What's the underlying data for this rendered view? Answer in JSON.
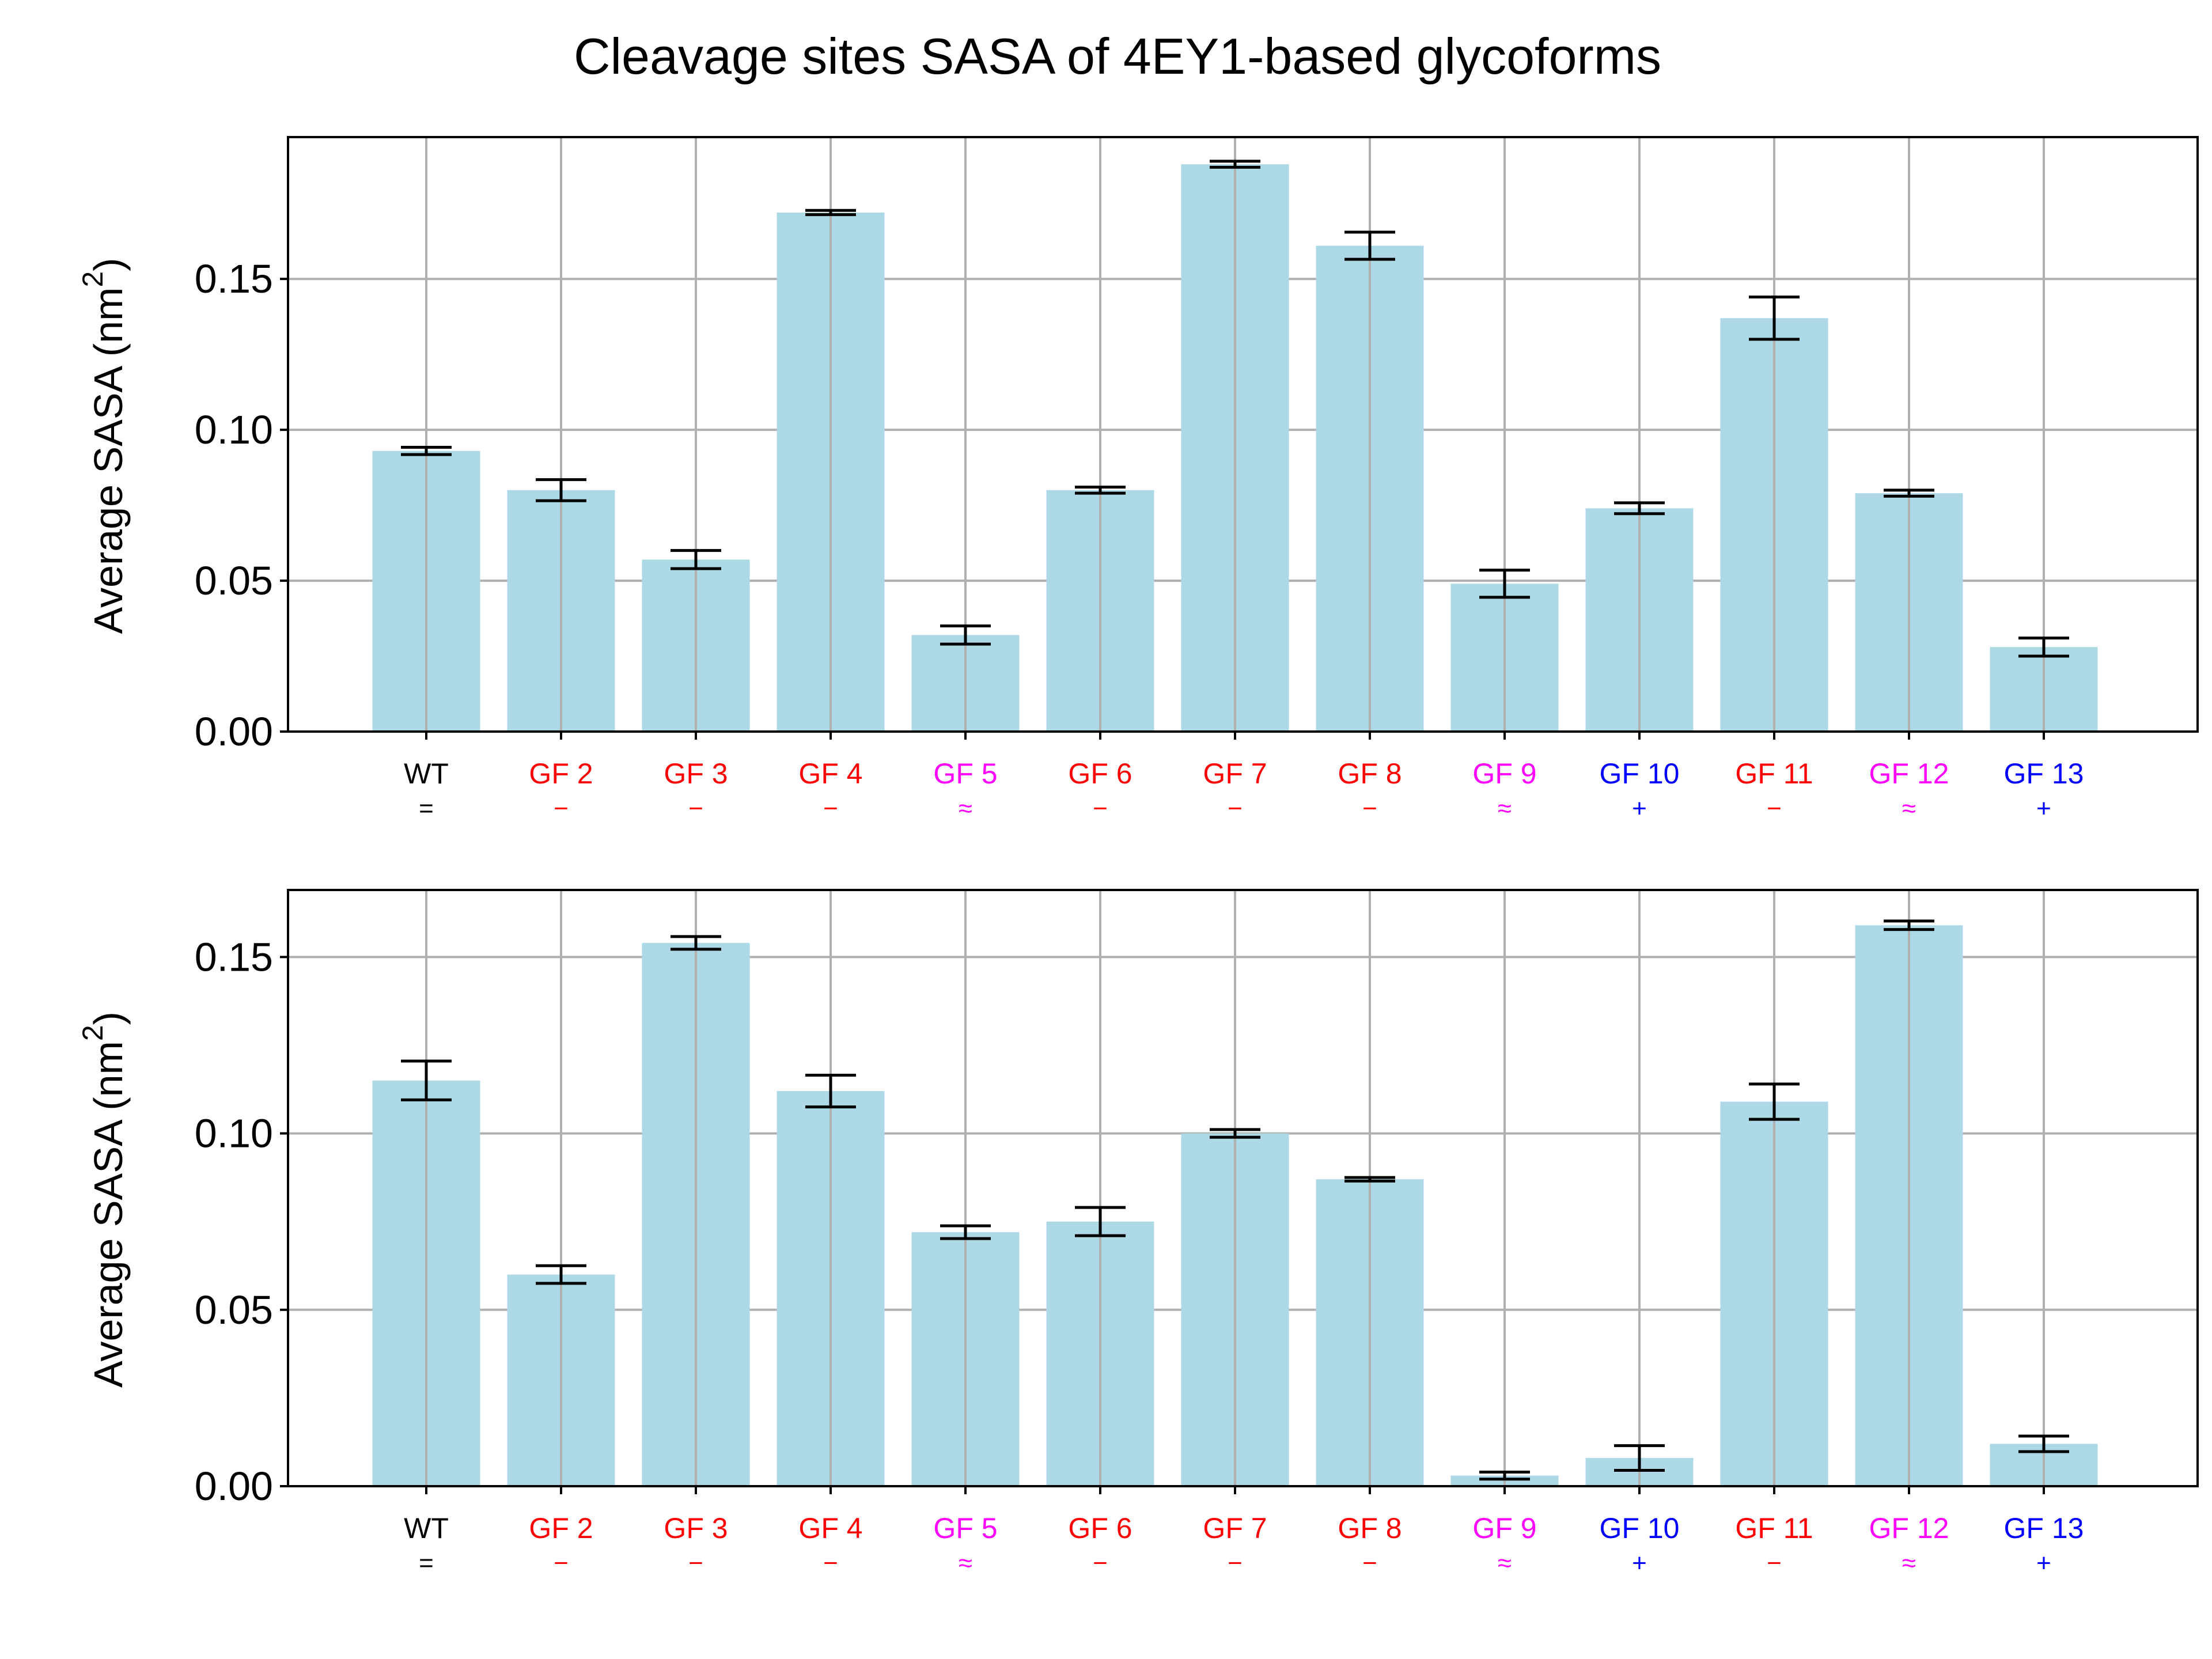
{
  "figure": {
    "title": "Cleavage sites SASA of 4EY1-based glycoforms"
  },
  "colors": {
    "bar": "#add8e6",
    "grid": "#b0b0b0",
    "axis": "#000000",
    "error_bar": "#000000",
    "label_black": "#000000",
    "label_red": "#ff0000",
    "label_magenta": "#ff00ff",
    "label_blue": "#0000ff"
  },
  "chart_data": [
    {
      "type": "bar",
      "title": "",
      "xlabel": "",
      "ylabel": "Average SASA (nm²)",
      "ylabel_main": "Average SASA (nm",
      "ylabel_sup": "2",
      "ylabel_close": ")",
      "ylim": [
        0,
        0.197
      ],
      "yticks": [
        "0.00",
        "0.05",
        "0.10",
        "0.15"
      ],
      "grid": true,
      "categories": [
        "WT",
        "GF 2",
        "GF 3",
        "GF 4",
        "GF 5",
        "GF 6",
        "GF 7",
        "GF 8",
        "GF 9",
        "GF 10",
        "GF 11",
        "GF 12",
        "GF 13"
      ],
      "category_symbols": [
        "=",
        "−",
        "−",
        "−",
        "≈",
        "−",
        "−",
        "−",
        "≈",
        "+",
        "−",
        "≈",
        "+"
      ],
      "category_colors": [
        "black",
        "red",
        "red",
        "red",
        "magenta",
        "red",
        "red",
        "red",
        "magenta",
        "blue",
        "red",
        "magenta",
        "blue"
      ],
      "values": [
        0.093,
        0.08,
        0.057,
        0.172,
        0.032,
        0.08,
        0.188,
        0.161,
        0.049,
        0.074,
        0.137,
        0.079,
        0.028
      ],
      "errors": [
        0.0012,
        0.0035,
        0.003,
        0.0007,
        0.003,
        0.001,
        0.001,
        0.0045,
        0.0045,
        0.0018,
        0.007,
        0.001,
        0.003
      ]
    },
    {
      "type": "bar",
      "title": "",
      "xlabel": "",
      "ylabel": "Average SASA (nm²)",
      "ylabel_main": "Average SASA (nm",
      "ylabel_sup": "2",
      "ylabel_close": ")",
      "ylim": [
        0,
        0.169
      ],
      "yticks": [
        "0.00",
        "0.05",
        "0.10",
        "0.15"
      ],
      "grid": true,
      "categories": [
        "WT",
        "GF 2",
        "GF 3",
        "GF 4",
        "GF 5",
        "GF 6",
        "GF 7",
        "GF 8",
        "GF 9",
        "GF 10",
        "GF 11",
        "GF 12",
        "GF 13"
      ],
      "category_symbols": [
        "=",
        "−",
        "−",
        "−",
        "≈",
        "−",
        "−",
        "−",
        "≈",
        "+",
        "−",
        "≈",
        "+"
      ],
      "category_colors": [
        "black",
        "red",
        "red",
        "red",
        "magenta",
        "red",
        "red",
        "red",
        "magenta",
        "blue",
        "red",
        "magenta",
        "blue"
      ],
      "values": [
        0.115,
        0.06,
        0.154,
        0.112,
        0.072,
        0.075,
        0.1,
        0.087,
        0.003,
        0.008,
        0.109,
        0.159,
        0.012
      ],
      "errors": [
        0.0055,
        0.0025,
        0.0018,
        0.0045,
        0.0018,
        0.004,
        0.0011,
        0.0005,
        0.001,
        0.0035,
        0.005,
        0.0012,
        0.0022
      ]
    }
  ]
}
